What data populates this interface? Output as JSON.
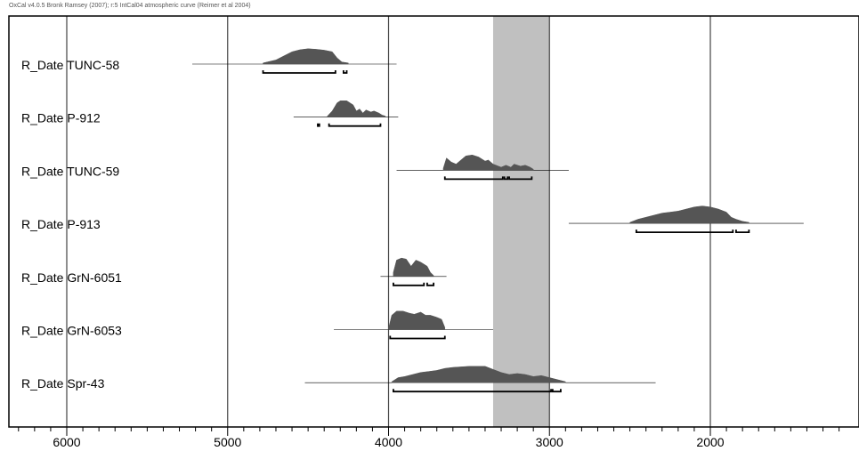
{
  "header": {
    "text": "OxCal v4.0.5 Bronk Ramsey (2007); r:5 IntCal04 atmospheric curve (Reimer et al 2004)"
  },
  "chart_data": {
    "type": "probability-distribution",
    "x_axis": {
      "reversed": true,
      "ticks": [
        6000,
        5000,
        4000,
        3000,
        2000
      ],
      "minor_step": 100,
      "range": [
        6360,
        1140
      ]
    },
    "grid_x": [
      6000,
      5000,
      4000,
      3000,
      2000
    ],
    "highlight_band": [
      3350,
      3000
    ],
    "colors": {
      "fill": "#555555",
      "band": "#c0c0c0",
      "grid": "#444444",
      "line": "#000000"
    },
    "dates": [
      {
        "label": "R_Date TUNC-58",
        "line": [
          5220,
          3950
        ],
        "peaks": [
          [
            4780,
            0.5
          ],
          [
            4700,
            2.0
          ],
          [
            4650,
            4.0
          ],
          [
            4600,
            6.0
          ],
          [
            4550,
            7.0
          ],
          [
            4500,
            7.5
          ],
          [
            4450,
            7.2
          ],
          [
            4400,
            6.8
          ],
          [
            4350,
            6.0
          ],
          [
            4320,
            3.0
          ],
          [
            4290,
            1.0
          ],
          [
            4250,
            0.5
          ]
        ],
        "ranges": [
          [
            4780,
            4330
          ],
          [
            4280,
            4260
          ]
        ]
      },
      {
        "label": "R_Date P-912",
        "line": [
          4590,
          3940
        ],
        "peaks": [
          [
            4380,
            0.5
          ],
          [
            4350,
            3.0
          ],
          [
            4320,
            7.0
          ],
          [
            4300,
            8.0
          ],
          [
            4260,
            8.0
          ],
          [
            4220,
            6.0
          ],
          [
            4200,
            3.0
          ],
          [
            4180,
            4.0
          ],
          [
            4160,
            2.0
          ],
          [
            4140,
            3.5
          ],
          [
            4110,
            2.5
          ],
          [
            4090,
            3.0
          ],
          [
            4060,
            2.0
          ],
          [
            4040,
            1.0
          ],
          [
            4020,
            0.5
          ]
        ],
        "ranges": [
          [
            4440,
            4430
          ],
          [
            4370,
            4050
          ]
        ]
      },
      {
        "label": "R_Date TUNC-59",
        "line": [
          3950,
          2880
        ],
        "peaks": [
          [
            3660,
            1.0
          ],
          [
            3640,
            6.0
          ],
          [
            3610,
            4.0
          ],
          [
            3580,
            3.0
          ],
          [
            3550,
            5.0
          ],
          [
            3520,
            7.0
          ],
          [
            3480,
            7.5
          ],
          [
            3440,
            6.5
          ],
          [
            3400,
            4.5
          ],
          [
            3380,
            5.0
          ],
          [
            3350,
            3.0
          ],
          [
            3300,
            1.5
          ],
          [
            3270,
            2.5
          ],
          [
            3240,
            1.5
          ],
          [
            3220,
            3.0
          ],
          [
            3180,
            2.0
          ],
          [
            3150,
            2.5
          ],
          [
            3120,
            1.5
          ],
          [
            3100,
            0.5
          ]
        ],
        "ranges": [
          [
            3650,
            3290
          ],
          [
            3280,
            3260
          ],
          [
            3250,
            3110
          ]
        ]
      },
      {
        "label": "R_Date P-913",
        "line": [
          2880,
          1420
        ],
        "peaks": [
          [
            2500,
            0.5
          ],
          [
            2450,
            2.0
          ],
          [
            2400,
            3.0
          ],
          [
            2350,
            4.0
          ],
          [
            2300,
            5.0
          ],
          [
            2250,
            5.5
          ],
          [
            2200,
            6.0
          ],
          [
            2150,
            7.0
          ],
          [
            2100,
            8.0
          ],
          [
            2050,
            8.5
          ],
          [
            2000,
            8.0
          ],
          [
            1950,
            7.0
          ],
          [
            1900,
            5.5
          ],
          [
            1870,
            3.0
          ],
          [
            1840,
            2.0
          ],
          [
            1800,
            1.0
          ],
          [
            1760,
            0.5
          ]
        ],
        "ranges": [
          [
            2460,
            1860
          ],
          [
            1840,
            1760
          ]
        ]
      },
      {
        "label": "R_Date GrN-6051",
        "line": [
          4050,
          3640
        ],
        "peaks": [
          [
            3970,
            2.0
          ],
          [
            3950,
            8.0
          ],
          [
            3920,
            9.0
          ],
          [
            3890,
            8.5
          ],
          [
            3860,
            5.0
          ],
          [
            3830,
            8.0
          ],
          [
            3800,
            7.0
          ],
          [
            3780,
            6.0
          ],
          [
            3760,
            5.0
          ],
          [
            3740,
            2.0
          ],
          [
            3720,
            0.5
          ]
        ],
        "ranges": [
          [
            3970,
            3780
          ],
          [
            3760,
            3720
          ]
        ]
      },
      {
        "label": "R_Date GrN-6053",
        "line": [
          4340,
          3350
        ],
        "peaks": [
          [
            4000,
            0.5
          ],
          [
            3980,
            7.0
          ],
          [
            3950,
            9.0
          ],
          [
            3910,
            9.0
          ],
          [
            3870,
            8.0
          ],
          [
            3840,
            7.5
          ],
          [
            3800,
            8.5
          ],
          [
            3770,
            7.0
          ],
          [
            3740,
            7.0
          ],
          [
            3700,
            6.0
          ],
          [
            3670,
            5.0
          ],
          [
            3650,
            1.0
          ]
        ],
        "ranges": [
          [
            3990,
            3650
          ]
        ]
      },
      {
        "label": "R_Date Spr-43",
        "line": [
          4520,
          2340
        ],
        "peaks": [
          [
            3980,
            0.5
          ],
          [
            3940,
            2.5
          ],
          [
            3900,
            3.0
          ],
          [
            3850,
            4.0
          ],
          [
            3800,
            5.0
          ],
          [
            3750,
            5.5
          ],
          [
            3700,
            6.0
          ],
          [
            3650,
            7.0
          ],
          [
            3600,
            7.5
          ],
          [
            3500,
            8.0
          ],
          [
            3400,
            8.0
          ],
          [
            3350,
            6.5
          ],
          [
            3300,
            5.0
          ],
          [
            3250,
            4.0
          ],
          [
            3200,
            4.5
          ],
          [
            3150,
            4.0
          ],
          [
            3100,
            3.0
          ],
          [
            3050,
            3.5
          ],
          [
            3000,
            2.5
          ],
          [
            2950,
            1.5
          ],
          [
            2900,
            0.5
          ]
        ],
        "ranges": [
          [
            3970,
            2990
          ],
          [
            2980,
            2930
          ]
        ]
      }
    ]
  }
}
